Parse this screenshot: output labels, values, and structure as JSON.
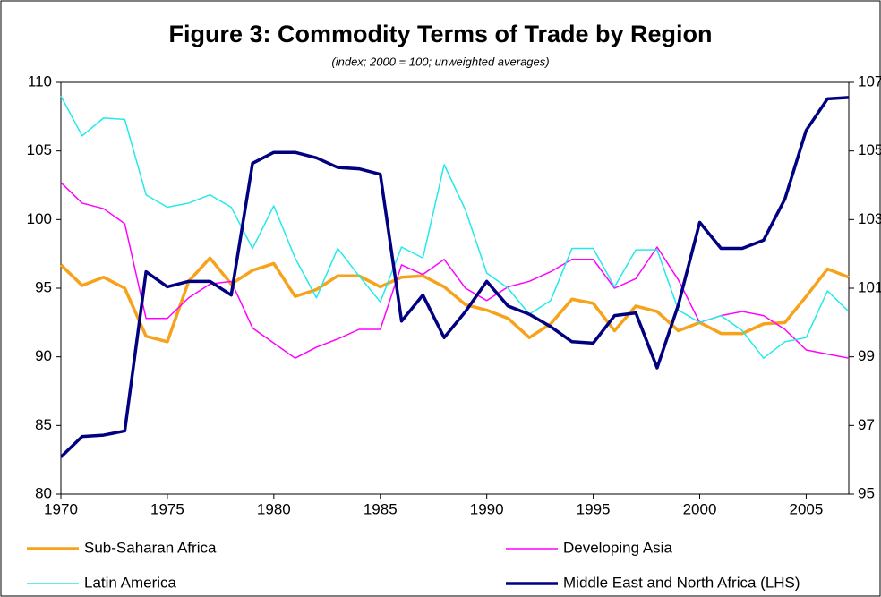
{
  "chart_data": {
    "type": "line",
    "title": "Figure 3: Commodity Terms of Trade by Region",
    "subtitle": "(index; 2000 = 100; unweighted averages)",
    "x": [
      1970,
      1971,
      1972,
      1973,
      1974,
      1975,
      1976,
      1977,
      1978,
      1979,
      1980,
      1981,
      1982,
      1983,
      1984,
      1985,
      1986,
      1987,
      1988,
      1989,
      1990,
      1991,
      1992,
      1993,
      1994,
      1995,
      1996,
      1997,
      1998,
      1999,
      2000,
      2001,
      2002,
      2003,
      2004,
      2005,
      2006,
      2007
    ],
    "xlim": [
      1970,
      2007
    ],
    "xticks": [
      1970,
      1975,
      1980,
      1985,
      1990,
      1995,
      2000,
      2005
    ],
    "ylim": [
      80,
      110
    ],
    "yticks": [
      80,
      85,
      90,
      95,
      100,
      105,
      110
    ],
    "y2lim": [
      95,
      107
    ],
    "y2ticks": [
      95,
      97,
      99,
      101,
      103,
      105,
      107
    ],
    "legend": "bottom",
    "series": [
      {
        "name": "Sub-Saharan Africa",
        "color": "#f7a21b",
        "axis": "y2",
        "values": [
          101.68,
          101.08,
          101.32,
          101.0,
          99.6,
          99.44,
          101.2,
          101.88,
          101.12,
          101.52,
          101.72,
          100.76,
          100.96,
          101.36,
          101.36,
          101.04,
          101.32,
          101.36,
          101.04,
          100.52,
          100.36,
          100.12,
          99.56,
          99.96,
          100.68,
          100.56,
          99.76,
          100.48,
          100.32,
          99.76,
          100.0,
          99.68,
          99.68,
          99.96,
          100.0,
          100.76,
          101.56,
          101.32
        ]
      },
      {
        "name": "Developing Asia",
        "color": "#ff00ff",
        "axis": "y2",
        "values": [
          104.08,
          103.48,
          103.32,
          102.88,
          100.12,
          100.12,
          100.72,
          101.12,
          101.2,
          99.84,
          99.4,
          98.96,
          99.28,
          99.52,
          99.8,
          99.8,
          101.68,
          101.4,
          101.84,
          101.0,
          100.64,
          101.04,
          101.2,
          101.48,
          101.84,
          101.84,
          101.0,
          101.28,
          102.2,
          101.24,
          100.0,
          100.2,
          100.32,
          100.2,
          99.8,
          99.2,
          99.08,
          98.96
        ]
      },
      {
        "name": "Latin America",
        "color": "#22eaea",
        "axis": "y2",
        "values": [
          106.6,
          105.44,
          105.96,
          105.92,
          103.72,
          103.36,
          103.48,
          103.72,
          103.36,
          102.16,
          103.4,
          101.88,
          100.72,
          102.16,
          101.36,
          100.6,
          102.2,
          101.88,
          104.6,
          103.28,
          101.44,
          101.0,
          100.24,
          100.64,
          102.16,
          102.16,
          101.04,
          102.12,
          102.12,
          100.36,
          100.0,
          100.2,
          99.76,
          98.96,
          99.44,
          99.56,
          100.92,
          100.32
        ]
      },
      {
        "name": "Middle East and North Africa (LHS)",
        "color": "#000080",
        "values": [
          82.7,
          84.2,
          84.3,
          84.6,
          96.2,
          95.1,
          95.5,
          95.5,
          94.5,
          104.1,
          104.9,
          104.9,
          104.5,
          103.8,
          103.7,
          103.3,
          92.6,
          94.5,
          91.4,
          93.3,
          95.5,
          93.7,
          93.1,
          92.2,
          91.1,
          91.0,
          93.0,
          93.2,
          89.2,
          93.8,
          99.8,
          97.9,
          97.9,
          98.5,
          101.5,
          106.5,
          108.8,
          108.9
        ]
      }
    ]
  }
}
